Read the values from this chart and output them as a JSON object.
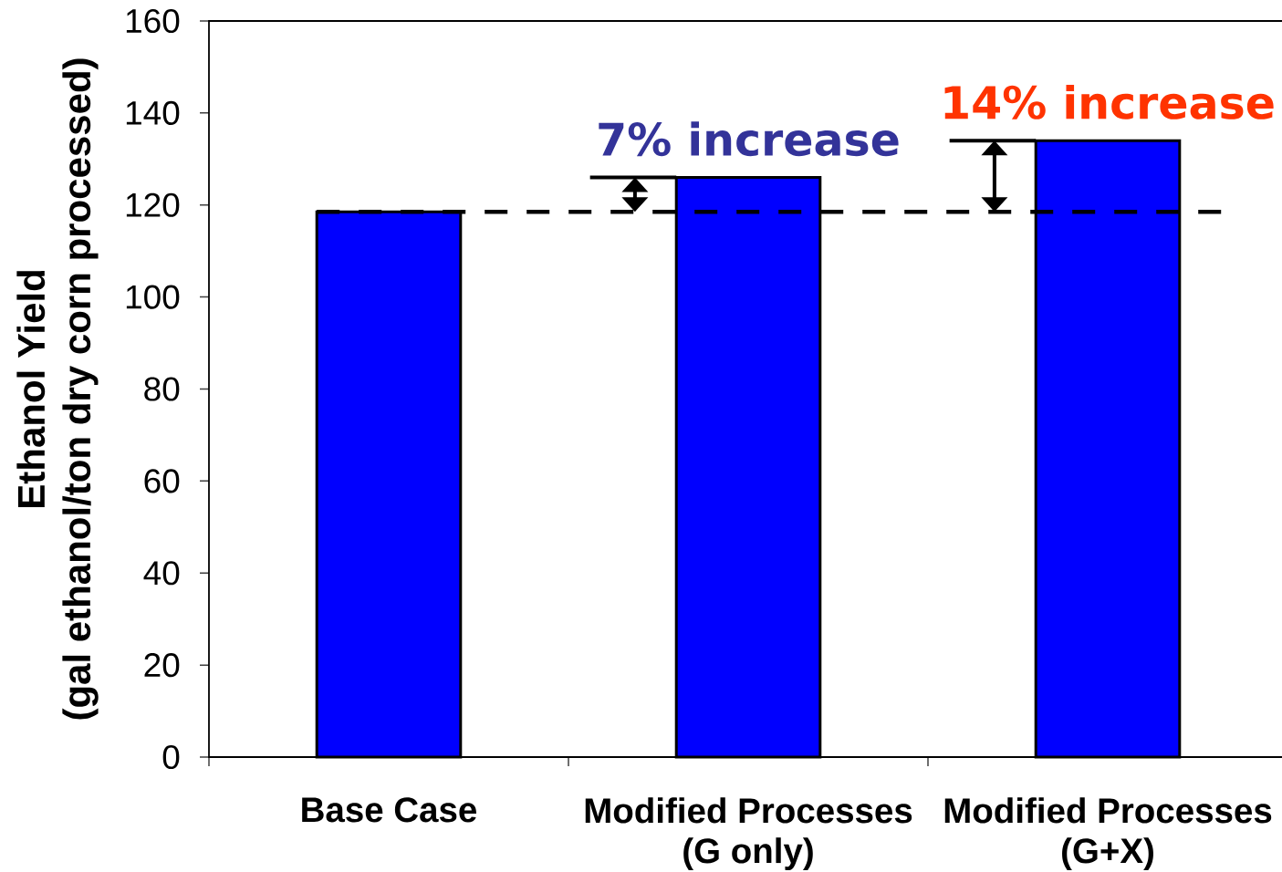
{
  "chart_data": {
    "type": "bar",
    "categories": [
      "Base Case",
      "Modified Processes (G only)",
      "Modified Processes (G+X)"
    ],
    "values": [
      118.5,
      126,
      134
    ],
    "color": "#0000ff",
    "ylabel": "Ethanol Yield (gal ethanol/ton dry corn processed)",
    "ylim": [
      0,
      160
    ],
    "yticks": [
      0,
      20,
      40,
      60,
      80,
      100,
      120,
      140,
      160
    ],
    "ref_lines": [
      {
        "axis": "y",
        "value": 118.5,
        "line_style": "dashed",
        "color": "#000000"
      }
    ],
    "annotations": [
      {
        "text": "7% increase",
        "x": "Modified Processes (G only)",
        "y": 126
      },
      {
        "text": "14% increase",
        "x": "Modified Processes (G+X)",
        "y": 134
      }
    ]
  }
}
